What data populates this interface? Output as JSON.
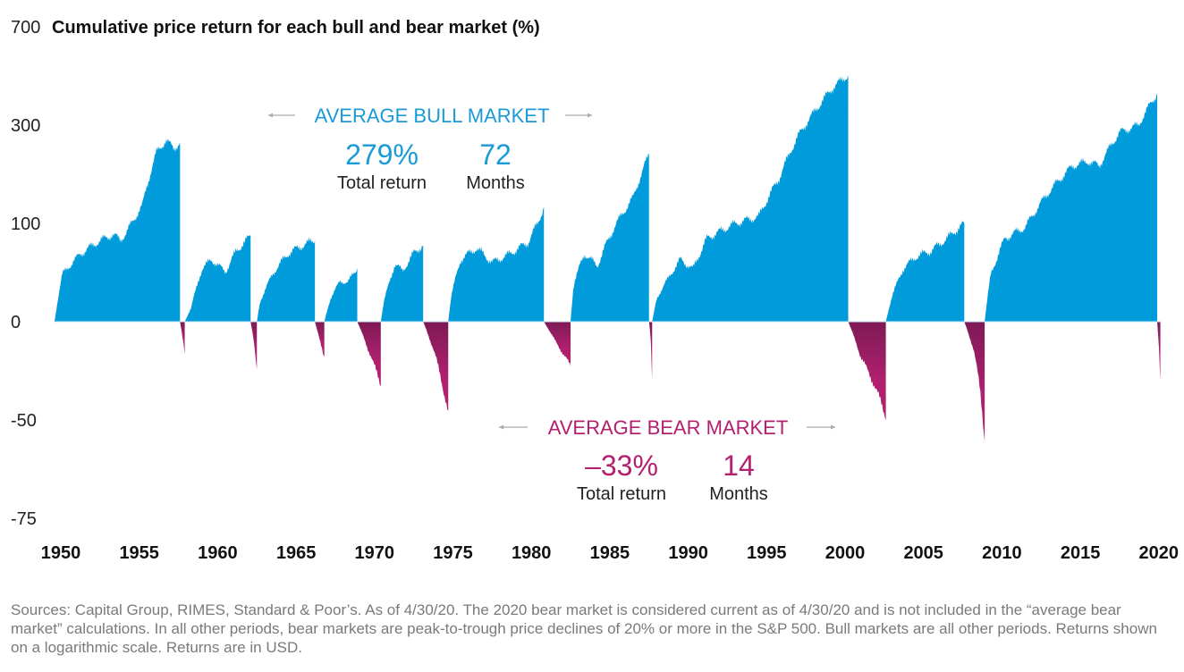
{
  "chart_data": {
    "type": "area",
    "title": "Cumulative price return for each bull and bear market (%)",
    "y_scale": "log",
    "y_ticks": [
      700,
      300,
      100,
      0,
      -50,
      -75
    ],
    "x_ticks": [
      1950,
      1955,
      1960,
      1965,
      1970,
      1975,
      1980,
      1985,
      1990,
      1995,
      2000,
      2005,
      2010,
      2015,
      2020
    ],
    "xlim": [
      1949.6,
      2020.2
    ],
    "grid": false,
    "colors": {
      "bull": "#009bdb",
      "bear": "#b0206f",
      "bear_dark": "#7e1a55"
    },
    "bull_markets": [
      [
        [
          1949.6,
          0
        ],
        [
          1950.1,
          40
        ],
        [
          1951.3,
          62
        ],
        [
          1952.4,
          76
        ],
        [
          1953.3,
          85
        ],
        [
          1953.8,
          78
        ],
        [
          1954.2,
          88
        ],
        [
          1955.2,
          127
        ],
        [
          1956.1,
          230
        ],
        [
          1956.7,
          259
        ],
        [
          1957.2,
          240
        ],
        [
          1957.6,
          253
        ]
      ],
      [
        [
          1957.9,
          0
        ],
        [
          1958.3,
          10
        ],
        [
          1959.0,
          45
        ],
        [
          1959.6,
          55
        ],
        [
          1960.5,
          42
        ],
        [
          1961.2,
          65
        ],
        [
          1962.1,
          83
        ]
      ],
      [
        [
          1962.5,
          0
        ],
        [
          1962.7,
          15
        ],
        [
          1963.5,
          40
        ],
        [
          1964.5,
          62
        ],
        [
          1965.5,
          72
        ],
        [
          1966.2,
          78
        ]
      ],
      [
        [
          1966.8,
          0
        ],
        [
          1967.2,
          18
        ],
        [
          1967.8,
          33
        ],
        [
          1968.3,
          32
        ],
        [
          1968.9,
          46
        ]
      ],
      [
        [
          1970.4,
          0
        ],
        [
          1970.6,
          15
        ],
        [
          1971.3,
          50
        ],
        [
          1971.8,
          43
        ],
        [
          1972.5,
          62
        ],
        [
          1973.1,
          72
        ]
      ],
      [
        [
          1974.7,
          0
        ],
        [
          1974.9,
          20
        ],
        [
          1975.5,
          55
        ],
        [
          1976.5,
          68
        ],
        [
          1977.5,
          52
        ],
        [
          1978.5,
          60
        ],
        [
          1979.8,
          75
        ],
        [
          1980.4,
          100
        ],
        [
          1980.8,
          124
        ]
      ],
      [
        [
          1982.5,
          0
        ],
        [
          1982.7,
          30
        ],
        [
          1983.4,
          62
        ],
        [
          1984.2,
          48
        ],
        [
          1985.3,
          95
        ],
        [
          1986.5,
          140
        ],
        [
          1987.5,
          225
        ]
      ],
      [
        [
          1987.7,
          0
        ],
        [
          1988.0,
          18
        ],
        [
          1989.5,
          55
        ],
        [
          1990.3,
          45
        ],
        [
          1991.2,
          80
        ],
        [
          1993.0,
          100
        ],
        [
          1994.5,
          110
        ],
        [
          1995.8,
          175
        ],
        [
          1997.0,
          270
        ],
        [
          1998.2,
          350
        ],
        [
          1999.2,
          420
        ],
        [
          2000.2,
          470
        ]
      ],
      [
        [
          2002.6,
          0
        ],
        [
          2003.0,
          20
        ],
        [
          2003.7,
          45
        ],
        [
          2004.5,
          58
        ],
        [
          2005.5,
          65
        ],
        [
          2006.5,
          80
        ],
        [
          2007.6,
          100
        ]
      ],
      [
        [
          2008.9,
          0
        ],
        [
          2009.3,
          40
        ],
        [
          2010.2,
          80
        ],
        [
          2011.5,
          95
        ],
        [
          2013.0,
          150
        ],
        [
          2014.5,
          200
        ],
        [
          2015.5,
          210
        ],
        [
          2016.2,
          200
        ],
        [
          2017.5,
          280
        ],
        [
          2018.7,
          300
        ],
        [
          2019.9,
          400
        ]
      ]
    ],
    "bear_markets": [
      [
        [
          1957.6,
          0
        ],
        [
          1957.75,
          -10
        ],
        [
          1957.9,
          -20
        ]
      ],
      [
        [
          1962.1,
          0
        ],
        [
          1962.3,
          -12
        ],
        [
          1962.5,
          -28
        ]
      ],
      [
        [
          1966.2,
          0
        ],
        [
          1966.5,
          -12
        ],
        [
          1966.8,
          -22
        ]
      ],
      [
        [
          1968.9,
          0
        ],
        [
          1969.6,
          -18
        ],
        [
          1970.4,
          -36
        ]
      ],
      [
        [
          1973.1,
          0
        ],
        [
          1973.9,
          -22
        ],
        [
          1974.7,
          -48
        ]
      ],
      [
        [
          1980.8,
          0
        ],
        [
          1981.6,
          -14
        ],
        [
          1982.5,
          -27
        ]
      ],
      [
        [
          1987.5,
          0
        ],
        [
          1987.6,
          -10
        ],
        [
          1987.7,
          -34
        ]
      ],
      [
        [
          2000.2,
          0
        ],
        [
          2001.0,
          -22
        ],
        [
          2001.8,
          -35
        ],
        [
          2002.6,
          -49
        ]
      ],
      [
        [
          2007.6,
          0
        ],
        [
          2008.2,
          -18
        ],
        [
          2008.6,
          -38
        ],
        [
          2008.9,
          -57
        ]
      ],
      [
        [
          2019.9,
          0
        ],
        [
          2020.0,
          -15
        ],
        [
          2020.1,
          -34
        ]
      ]
    ]
  },
  "annotations": {
    "bull": {
      "label": "AVERAGE BULL MARKET",
      "return_value": "279%",
      "return_label": "Total return",
      "months_value": "72",
      "months_label": "Months"
    },
    "bear": {
      "label": "AVERAGE BEAR MARKET",
      "return_value": "–33%",
      "return_label": "Total return",
      "months_value": "14",
      "months_label": "Months"
    }
  },
  "footer": "Sources: Capital Group, RIMES, Standard & Poor’s. As of 4/30/20. The 2020 bear market is considered current as of 4/30/20 and is not included in the “average bear market” calculations. In all other periods, bear markets are peak-to-trough price declines of 20% or more in the S&P 500. Bull markets are all other periods. Returns shown on a logarithmic scale. Returns are in USD."
}
